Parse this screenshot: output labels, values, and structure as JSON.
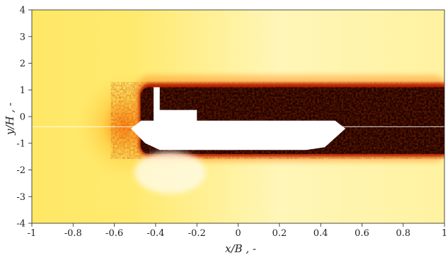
{
  "chart_data": {
    "type": "heatmap",
    "xlabel": "x/B , -",
    "ylabel": "y/H , -",
    "xlim": [
      -1,
      1
    ],
    "ylim": [
      -4,
      4
    ],
    "x_ticks": [
      "-1",
      "-0.8",
      "-0.6",
      "-0.4",
      "-0.2",
      "0",
      "0.2",
      "0.4",
      "0.6",
      "0.8",
      "1"
    ],
    "y_ticks": [
      "4",
      "3",
      "2",
      "1",
      "0",
      "-1",
      "-2",
      "-3",
      "-4"
    ],
    "x_tick_values": [
      -1,
      -0.8,
      -0.6,
      -0.4,
      -0.2,
      0,
      0.2,
      0.4,
      0.6,
      0.8,
      1
    ],
    "y_tick_values": [
      4,
      3,
      2,
      1,
      0,
      -1,
      -2,
      -3,
      -4
    ],
    "colormap": [
      "#fffff2",
      "#fff7a6",
      "#ffe566",
      "#ff8a1a",
      "#c81800",
      "#4a0000",
      "#140000"
    ],
    "grid": false,
    "colorbar": false,
    "wake_region": {
      "x_range": [
        -0.48,
        1
      ],
      "y_upper": 1.1,
      "y_lower": -1.4,
      "description_color": "#1a0000"
    },
    "body_outline": [
      [
        -0.52,
        -0.45
      ],
      [
        -0.47,
        -0.15
      ],
      [
        -0.41,
        -0.15
      ],
      [
        -0.41,
        1.1
      ],
      [
        -0.38,
        1.1
      ],
      [
        -0.38,
        0.25
      ],
      [
        -0.2,
        0.25
      ],
      [
        -0.2,
        -0.15
      ],
      [
        0.47,
        -0.15
      ],
      [
        0.52,
        -0.45
      ],
      [
        0.42,
        -1.15
      ],
      [
        0.33,
        -1.25
      ],
      [
        -0.38,
        -1.25
      ],
      [
        -0.45,
        -1.0
      ]
    ],
    "centerline_y": -0.38
  }
}
